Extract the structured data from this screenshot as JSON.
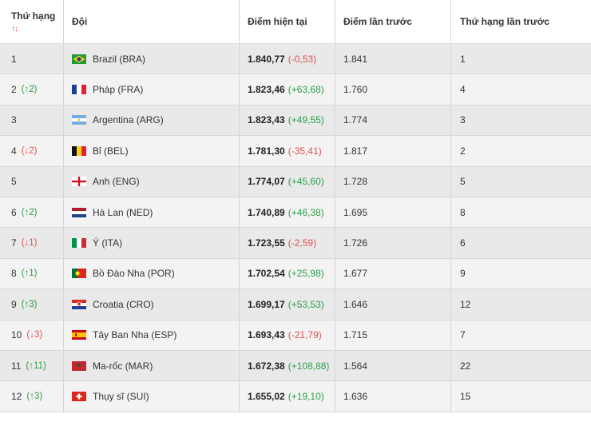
{
  "headers": {
    "rank": "Thứ hạng",
    "sort": "↑↓",
    "team": "Đội",
    "current_points": "Điểm hiện tại",
    "previous_points": "Điểm lần trước",
    "previous_rank": "Thứ hạng lần trước"
  },
  "colors": {
    "up": "#2e9d4a",
    "down": "#d9534f"
  },
  "rows": [
    {
      "rank": "1",
      "change": "",
      "dir": "",
      "team": "Brazil (BRA)",
      "flag": "brazil-flag-icon",
      "points": "1.840,77",
      "delta": "(-0,53)",
      "delta_dir": "down",
      "prev_points": "1.841",
      "prev_rank": "1"
    },
    {
      "rank": "2",
      "change": "(↑2)",
      "dir": "up",
      "team": "Pháp (FRA)",
      "flag": "france-flag-icon",
      "points": "1.823,46",
      "delta": "(+63,68)",
      "delta_dir": "up",
      "prev_points": "1.760",
      "prev_rank": "4"
    },
    {
      "rank": "3",
      "change": "",
      "dir": "",
      "team": "Argentina (ARG)",
      "flag": "argentina-flag-icon",
      "points": "1.823,43",
      "delta": "(+49,55)",
      "delta_dir": "up",
      "prev_points": "1.774",
      "prev_rank": "3"
    },
    {
      "rank": "4",
      "change": "(↓2)",
      "dir": "down",
      "team": "Bỉ (BEL)",
      "flag": "belgium-flag-icon",
      "points": "1.781,30",
      "delta": "(-35,41)",
      "delta_dir": "down",
      "prev_points": "1.817",
      "prev_rank": "2"
    },
    {
      "rank": "5",
      "change": "",
      "dir": "",
      "team": "Anh (ENG)",
      "flag": "england-flag-icon",
      "points": "1.774,07",
      "delta": "(+45,60)",
      "delta_dir": "up",
      "prev_points": "1.728",
      "prev_rank": "5"
    },
    {
      "rank": "6",
      "change": "(↑2)",
      "dir": "up",
      "team": "Hà Lan (NED)",
      "flag": "netherlands-flag-icon",
      "points": "1.740,89",
      "delta": "(+46,38)",
      "delta_dir": "up",
      "prev_points": "1.695",
      "prev_rank": "8"
    },
    {
      "rank": "7",
      "change": "(↓1)",
      "dir": "down",
      "team": "Ý (ITA)",
      "flag": "italy-flag-icon",
      "points": "1.723,55",
      "delta": "(-2,59)",
      "delta_dir": "down",
      "prev_points": "1.726",
      "prev_rank": "6"
    },
    {
      "rank": "8",
      "change": "(↑1)",
      "dir": "up",
      "team": "Bồ Đào Nha (POR)",
      "flag": "portugal-flag-icon",
      "points": "1.702,54",
      "delta": "(+25,98)",
      "delta_dir": "up",
      "prev_points": "1.677",
      "prev_rank": "9"
    },
    {
      "rank": "9",
      "change": "(↑3)",
      "dir": "up",
      "team": "Croatia (CRO)",
      "flag": "croatia-flag-icon",
      "points": "1.699,17",
      "delta": "(+53,53)",
      "delta_dir": "up",
      "prev_points": "1.646",
      "prev_rank": "12"
    },
    {
      "rank": "10",
      "change": "(↓3)",
      "dir": "down",
      "team": "Tây Ban Nha (ESP)",
      "flag": "spain-flag-icon",
      "points": "1.693,43",
      "delta": "(-21,79)",
      "delta_dir": "down",
      "prev_points": "1.715",
      "prev_rank": "7"
    },
    {
      "rank": "11",
      "change": "(↑11)",
      "dir": "up",
      "team": "Ma-rốc (MAR)",
      "flag": "morocco-flag-icon",
      "points": "1.672,38",
      "delta": "(+108,88)",
      "delta_dir": "up",
      "prev_points": "1.564",
      "prev_rank": "22"
    },
    {
      "rank": "12",
      "change": "(↑3)",
      "dir": "up",
      "team": "Thụy sĩ (SUI)",
      "flag": "switzerland-flag-icon",
      "points": "1.655,02",
      "delta": "(+19,10)",
      "delta_dir": "up",
      "prev_points": "1.636",
      "prev_rank": "15"
    }
  ]
}
